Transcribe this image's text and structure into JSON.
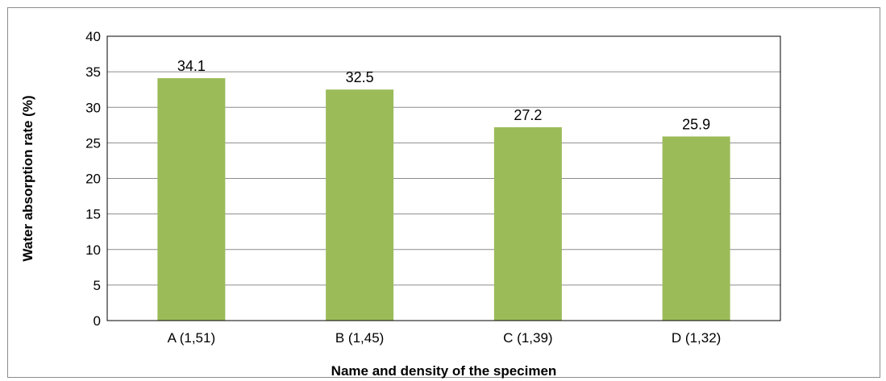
{
  "chart_data": {
    "type": "bar",
    "title": "",
    "xlabel": "Name and density of the specimen",
    "ylabel": "Water absorption rate (%)",
    "categories": [
      "A (1,51)",
      "B (1,45)",
      "C (1,39)",
      "D (1,32)"
    ],
    "values": [
      34.1,
      32.5,
      27.2,
      25.9
    ],
    "data_labels": [
      "34.1",
      "32.5",
      "27.2",
      "25.9"
    ],
    "ylim": [
      0,
      40
    ],
    "yticks": [
      0,
      5,
      10,
      15,
      20,
      25,
      30,
      35,
      40
    ],
    "grid": true,
    "legend": "none",
    "colors": {
      "bar": "#9bbb59",
      "grid": "#8c8c8c",
      "axis": "#000000",
      "frame": "#8c8c8c"
    }
  }
}
